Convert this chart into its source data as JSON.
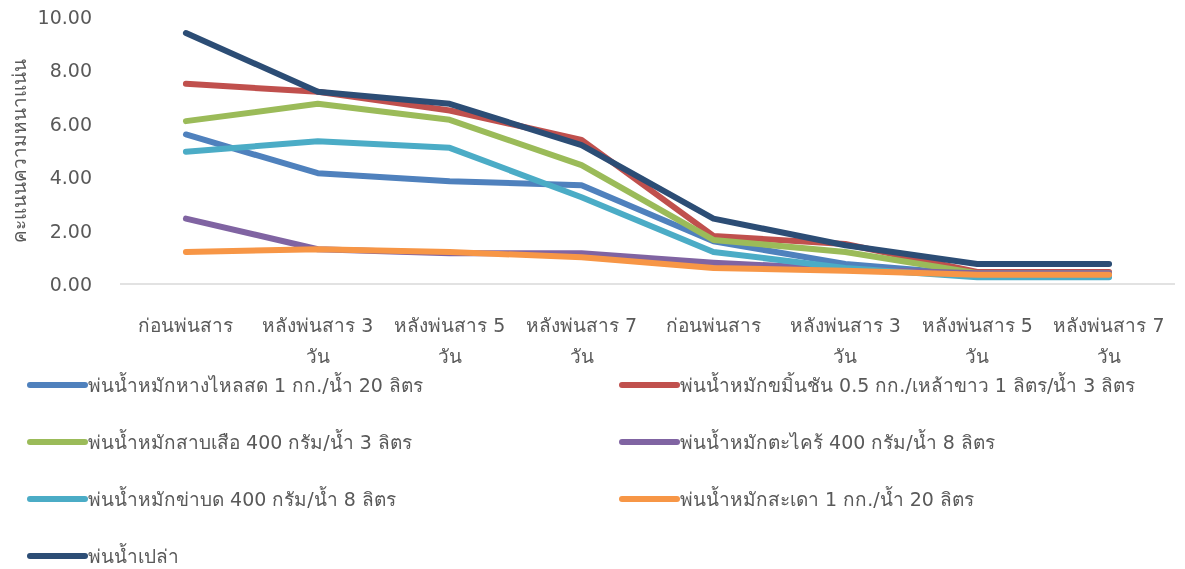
{
  "chart_data": {
    "type": "line",
    "ylabel": "คะแนนความหนาแน่น",
    "categories": [
      "ก่อนพ่นสาร",
      "หลังพ่นสาร 3 วัน",
      "หลังพ่นสาร 5 วัน",
      "หลังพ่นสาร 7 วัน",
      "ก่อนพ่นสาร",
      "หลังพ่นสาร 3 วัน",
      "หลังพ่นสาร 5 วัน",
      "หลังพ่นสาร 7 วัน"
    ],
    "ylim": [
      0,
      10
    ],
    "yticks": [
      {
        "value": 0,
        "label": "0.00"
      },
      {
        "value": 2,
        "label": "2.00"
      },
      {
        "value": 4,
        "label": "4.00"
      },
      {
        "value": 6,
        "label": "6.00"
      },
      {
        "value": 8,
        "label": "8.00"
      },
      {
        "value": 10,
        "label": "10.00"
      }
    ],
    "grid": false,
    "legend": "bottom",
    "marker": "none",
    "line_style": "solid",
    "series": [
      {
        "name": "พ่นน้ำหมักหางไหลสด 1 กก./น้ำ 20 ลิตร",
        "color": "#4f81bd",
        "values": [
          5.6,
          4.15,
          3.85,
          3.7,
          1.6,
          0.75,
          0.35,
          0.35
        ]
      },
      {
        "name": "พ่นน้ำหมักขมิ้นชัน 0.5 กก./เหล้าขาว 1 ลิตร/น้ำ 3 ลิตร",
        "color": "#c0504d",
        "values": [
          7.5,
          7.2,
          6.5,
          5.4,
          1.8,
          1.5,
          0.45,
          0.45
        ]
      },
      {
        "name": "พ่นน้ำหมักสาบเสือ 400 กรัม/น้ำ 3 ลิตร",
        "color": "#9bbb59",
        "values": [
          6.1,
          6.75,
          6.15,
          4.45,
          1.65,
          1.2,
          0.4,
          0.4
        ]
      },
      {
        "name": "พ่นน้ำหมักตะไคร้ 400 กรัม/น้ำ 8 ลิตร",
        "color": "#8064a2",
        "values": [
          2.45,
          1.3,
          1.15,
          1.15,
          0.8,
          0.55,
          0.4,
          0.4
        ]
      },
      {
        "name": "พ่นน้ำหมักข่าบด 400 กรัม/น้ำ 8 ลิตร",
        "color": "#4bacc6",
        "values": [
          4.95,
          5.35,
          5.1,
          3.25,
          1.2,
          0.6,
          0.25,
          0.25
        ]
      },
      {
        "name": "พ่นน้ำหมักสะเดา 1 กก./น้ำ 20 ลิตร",
        "color": "#f79646",
        "values": [
          1.2,
          1.3,
          1.2,
          1.0,
          0.6,
          0.5,
          0.35,
          0.35
        ]
      },
      {
        "name": "พ่นน้ำเปล่า",
        "color": "#2c4d75",
        "values": [
          9.4,
          7.2,
          6.75,
          5.2,
          2.45,
          1.45,
          0.75,
          0.75
        ]
      }
    ]
  }
}
